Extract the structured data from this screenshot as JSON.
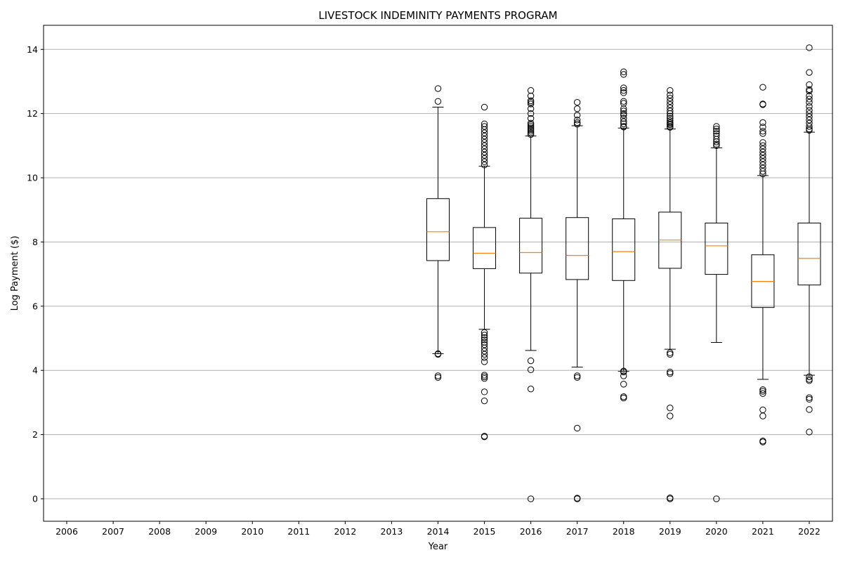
{
  "chart_data": {
    "type": "box",
    "title": "LIVESTOCK INDEMINITY PAYMENTS PROGRAM",
    "xlabel": "Year",
    "ylabel": "Log Payment ($)",
    "categories": [
      "2006",
      "2007",
      "2008",
      "2009",
      "2010",
      "2011",
      "2012",
      "2013",
      "2014",
      "2015",
      "2016",
      "2017",
      "2018",
      "2019",
      "2020",
      "2021",
      "2022"
    ],
    "ylim": [
      -0.7,
      14.75
    ],
    "yticks": [
      0,
      2,
      4,
      6,
      8,
      10,
      12,
      14
    ],
    "grid": "y",
    "colors": {
      "box": "#000000",
      "median": "#ff7f0e",
      "grid": "#b0b0b0"
    },
    "boxes": [
      {
        "x": "2014",
        "whisker_low": 4.52,
        "q1": 7.42,
        "median": 8.32,
        "q3": 9.35,
        "whisker_high": 12.2,
        "outliers": [
          12.78,
          12.38,
          4.5,
          4.52,
          3.83,
          3.78
        ]
      },
      {
        "x": "2015",
        "whisker_low": 5.28,
        "q1": 7.17,
        "median": 7.65,
        "q3": 8.45,
        "whisker_high": 10.36,
        "outliers": [
          12.2,
          11.68,
          11.6,
          11.5,
          11.4,
          11.3,
          11.2,
          11.1,
          11.0,
          10.9,
          10.8,
          10.7,
          10.6,
          10.5,
          10.4,
          5.18,
          5.1,
          5.02,
          4.95,
          4.88,
          4.8,
          4.7,
          4.6,
          4.5,
          4.4,
          4.27,
          3.85,
          3.8,
          3.75,
          3.33,
          3.05,
          1.95,
          1.93
        ]
      },
      {
        "x": "2016",
        "whisker_low": 4.62,
        "q1": 7.03,
        "median": 7.67,
        "q3": 8.74,
        "whisker_high": 11.3,
        "outliers": [
          12.72,
          12.55,
          12.4,
          12.35,
          12.3,
          12.15,
          12.0,
          11.85,
          11.7,
          11.65,
          11.6,
          11.55,
          11.5,
          11.45,
          11.4,
          11.35,
          4.3,
          4.02,
          3.42,
          0.0
        ]
      },
      {
        "x": "2017",
        "whisker_low": 4.1,
        "q1": 6.83,
        "median": 7.58,
        "q3": 8.76,
        "whisker_high": 11.62,
        "outliers": [
          12.35,
          12.15,
          11.95,
          11.8,
          11.72,
          11.67,
          3.83,
          3.78,
          2.2,
          0.02,
          0.0
        ]
      },
      {
        "x": "2018",
        "whisker_low": 3.97,
        "q1": 6.8,
        "median": 7.7,
        "q3": 8.72,
        "whisker_high": 11.55,
        "outliers": [
          13.3,
          13.22,
          12.8,
          12.72,
          12.65,
          12.38,
          12.32,
          12.15,
          12.08,
          12.0,
          11.95,
          11.85,
          11.75,
          11.68,
          11.6,
          11.58,
          3.98,
          3.95,
          3.83,
          3.57,
          3.18,
          3.14
        ]
      },
      {
        "x": "2019",
        "whisker_low": 4.66,
        "q1": 7.18,
        "median": 8.06,
        "q3": 8.93,
        "whisker_high": 11.52,
        "outliers": [
          12.72,
          12.58,
          12.48,
          12.38,
          12.28,
          12.18,
          12.08,
          12.0,
          11.92,
          11.85,
          11.78,
          11.72,
          11.68,
          11.65,
          11.6,
          11.57,
          4.55,
          4.5,
          3.95,
          3.9,
          2.83,
          2.58,
          0.03,
          0.0
        ]
      },
      {
        "x": "2020",
        "whisker_low": 4.87,
        "q1": 6.99,
        "median": 7.88,
        "q3": 8.59,
        "whisker_high": 10.93,
        "outliers": [
          11.6,
          11.52,
          11.45,
          11.38,
          11.3,
          11.2,
          11.12,
          11.05,
          11.0,
          0.0
        ]
      },
      {
        "x": "2021",
        "whisker_low": 3.72,
        "q1": 5.96,
        "median": 6.77,
        "q3": 7.6,
        "whisker_high": 10.07,
        "outliers": [
          12.82,
          12.3,
          12.28,
          11.72,
          11.58,
          11.45,
          11.38,
          11.1,
          11.0,
          10.9,
          10.8,
          10.7,
          10.6,
          10.5,
          10.4,
          10.3,
          10.2,
          10.12,
          3.4,
          3.35,
          3.28,
          2.77,
          2.58,
          1.8,
          1.77
        ]
      },
      {
        "x": "2022",
        "whisker_low": 3.85,
        "q1": 6.66,
        "median": 7.49,
        "q3": 8.59,
        "whisker_high": 11.42,
        "outliers": [
          14.05,
          13.28,
          12.9,
          12.75,
          12.7,
          12.55,
          12.45,
          12.35,
          12.22,
          12.1,
          12.0,
          11.9,
          11.8,
          11.7,
          11.6,
          11.52,
          11.48,
          3.8,
          3.72,
          3.68,
          3.15,
          3.1,
          2.78,
          2.08
        ]
      }
    ]
  }
}
